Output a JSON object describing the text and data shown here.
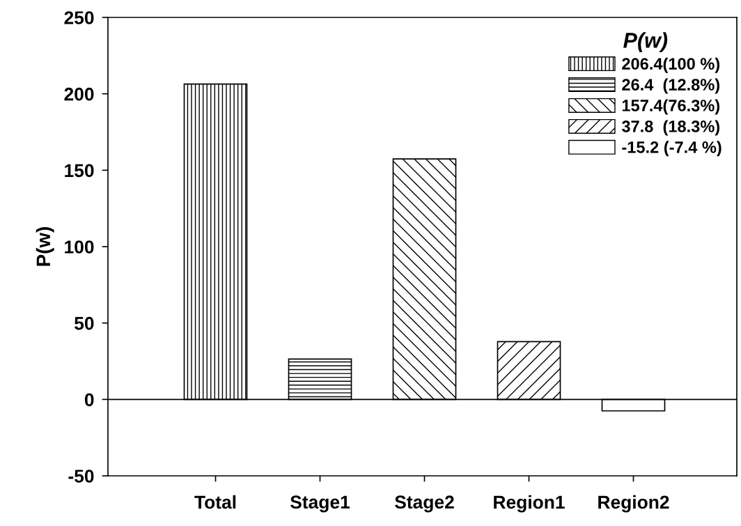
{
  "chart_data": {
    "type": "bar",
    "ylabel": "P(w)",
    "legend_title": "P(w)",
    "categories": [
      "Total",
      "Stage1",
      "Stage2",
      "Region1",
      "Region2"
    ],
    "series": [
      {
        "name": "206.4(100 %)",
        "color": "#000000",
        "values": [
          206.4,
          null,
          null,
          null,
          null
        ]
      },
      {
        "name": "26.4  (12.8%)",
        "color": "#000000",
        "values": [
          null,
          26.4,
          null,
          null,
          null
        ]
      },
      {
        "name": "157.4(76.3%)",
        "color": "#000000",
        "values": [
          null,
          null,
          157.4,
          null,
          null
        ]
      },
      {
        "name": "37.8  (18.3%)",
        "color": "#000000",
        "values": [
          null,
          null,
          null,
          37.8,
          null
        ]
      },
      {
        "name": "-15.2 (-7.4 %)",
        "color": "#ffffff",
        "values": [
          null,
          null,
          null,
          null,
          -7.5
        ]
      }
    ],
    "ylim": [
      -50,
      250
    ],
    "yticks": [
      -50,
      0,
      50,
      100,
      150,
      200,
      250
    ],
    "ref_lines": [
      {
        "axis": "y",
        "value": 0,
        "label": null,
        "color": "#000000"
      }
    ],
    "legend": "top right",
    "grid": false
  }
}
